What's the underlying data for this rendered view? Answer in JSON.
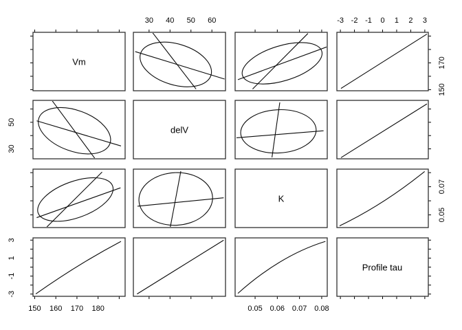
{
  "figure": {
    "background_color": "#ffffff",
    "panel_border_color": "#2f2f2f",
    "trace_line_color": "#0a0a0a",
    "tick_color": "#000000",
    "text_color": "#000000"
  },
  "chart_data": {
    "type": "scatterplot-matrix",
    "title": "",
    "variables": [
      "Vm",
      "delV",
      "K",
      "Profile tau"
    ],
    "diagonal_labels": [
      "Vm",
      "delV",
      "K",
      "Profile tau"
    ],
    "column_scales": [
      "Vm",
      "delV",
      "K",
      "tau"
    ],
    "row_scales": [
      "Vm",
      "delV",
      "K",
      "tau"
    ],
    "grid": "off",
    "legend": "none",
    "scales": {
      "Vm": {
        "range": [
          149.2,
          192.8
        ],
        "ticks": [
          150,
          160,
          170,
          180,
          190
        ]
      },
      "delV": {
        "range": [
          22.5,
          66.5
        ],
        "ticks": [
          30,
          40,
          50,
          60
        ]
      },
      "K": {
        "range": [
          0.041,
          0.0825
        ],
        "ticks": [
          0.05,
          0.06,
          0.07,
          0.08
        ]
      },
      "tau": {
        "range": [
          -3.25,
          3.25
        ],
        "ticks": [
          -3,
          -2,
          -1,
          0,
          1,
          2,
          3
        ]
      }
    },
    "outer_axis_labels": {
      "top": {
        "2": [
          "30",
          "40",
          "50",
          "60"
        ],
        "4": [
          "-3",
          "-2",
          "-1",
          "0",
          "1",
          "2",
          "3"
        ]
      },
      "bottom": {
        "1": [
          "150",
          "160",
          "170",
          "180"
        ],
        "3": [
          "0.05",
          "0.06",
          "0.07",
          "0.08"
        ]
      },
      "left": {
        "2": [
          "30",
          "50"
        ],
        "4": [
          "-3",
          "-1",
          "1",
          "3"
        ]
      },
      "right": {
        "1": [
          "150",
          "170"
        ],
        "3": [
          "0.05",
          "0.07"
        ]
      }
    },
    "panels": {
      "r1c1": {
        "type": "label",
        "text": "Vm"
      },
      "r1c2": {
        "type": "ellipse",
        "ellipse": [
          0.46,
          0.55,
          0.4,
          0.35,
          17
        ],
        "lines": [
          [
            0.21,
            0.01,
            0.68,
            0.97
          ],
          [
            0.02,
            0.33,
            0.99,
            0.8
          ]
        ]
      },
      "r1c3": {
        "type": "ellipse",
        "ellipse": [
          0.51,
          0.53,
          0.45,
          0.3,
          -17
        ],
        "lines": [
          [
            0.19,
            0.97,
            0.79,
            0.02
          ],
          [
            0.03,
            0.81,
            0.995,
            0.25
          ]
        ]
      },
      "r1c4": {
        "type": "line",
        "line": [
          0.045,
          0.96,
          0.985,
          0.03
        ]
      },
      "r2c1": {
        "type": "ellipse",
        "ellipse": [
          0.45,
          0.52,
          0.41,
          0.35,
          20
        ],
        "lines": [
          [
            0.21,
            0.01,
            0.67,
            0.99
          ],
          [
            0.04,
            0.35,
            0.955,
            0.78
          ]
        ]
      },
      "r2c2": {
        "type": "label",
        "text": "delV"
      },
      "r2c3": {
        "type": "ellipse",
        "ellipse": [
          0.47,
          0.53,
          0.41,
          0.37,
          -3
        ],
        "lines": [
          [
            0.015,
            0.64,
            0.96,
            0.52
          ],
          [
            0.485,
            0.035,
            0.4,
            0.975
          ]
        ]
      },
      "r2c4": {
        "type": "line",
        "line": [
          0.045,
          0.98,
          0.985,
          0.06
        ]
      },
      "r3c1": {
        "type": "ellipse",
        "ellipse": [
          0.46,
          0.52,
          0.43,
          0.31,
          -20
        ],
        "lines": [
          [
            0.15,
            0.99,
            0.75,
            0.05
          ],
          [
            0.04,
            0.83,
            0.95,
            0.32
          ]
        ]
      },
      "r3c2": {
        "type": "ellipse",
        "ellipse": [
          0.46,
          0.51,
          0.4,
          0.45,
          -3
        ],
        "lines": [
          [
            0.045,
            0.635,
            0.98,
            0.49
          ],
          [
            0.515,
            0.035,
            0.4,
            1.0
          ]
        ]
      },
      "r3c3": {
        "type": "label",
        "text": "K"
      },
      "r3c4": {
        "type": "curve",
        "bezier": [
          0.03,
          0.97,
          0.505,
          0.615,
          0.96,
          0.04
        ]
      },
      "r4c1": {
        "type": "curve",
        "bezier": [
          0.03,
          0.96,
          0.4875,
          0.45,
          0.955,
          0.06
        ]
      },
      "r4c2": {
        "type": "line",
        "line": [
          0.04,
          0.96,
          0.98,
          0.04
        ]
      },
      "r4c3": {
        "type": "curve",
        "bezier": [
          0.03,
          0.95,
          0.495,
          0.295,
          0.98,
          0.06
        ]
      },
      "r4c4": {
        "type": "label",
        "text": "Profile tau"
      }
    }
  }
}
